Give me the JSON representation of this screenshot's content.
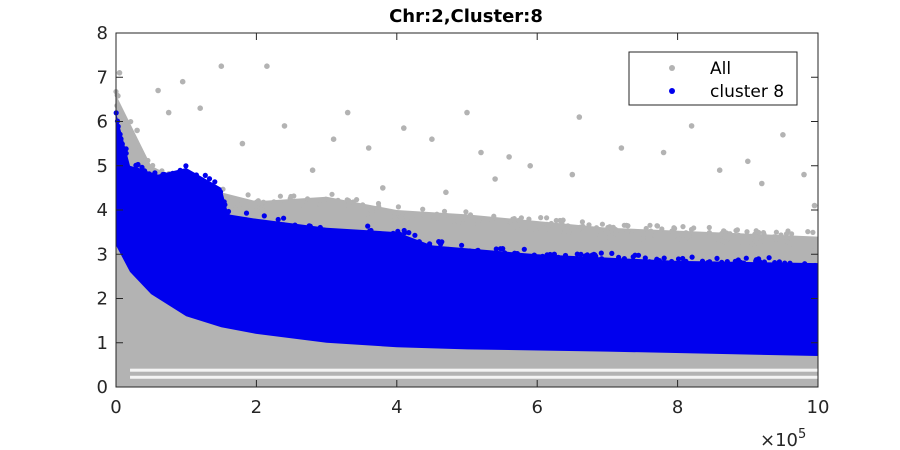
{
  "chart_data": {
    "type": "scatter",
    "title": "Chr:2,Cluster:8",
    "xlabel": "",
    "ylabel": "",
    "xlim": [
      0,
      1000000
    ],
    "ylim": [
      0,
      8
    ],
    "x_ticks": [
      0,
      200000,
      400000,
      600000,
      800000,
      1000000
    ],
    "x_tick_labels": [
      "0",
      "2",
      "4",
      "6",
      "8",
      "10"
    ],
    "x_multiplier_base": "×10",
    "x_multiplier_exp": "5",
    "y_ticks": [
      0,
      1,
      2,
      3,
      4,
      5,
      6,
      7,
      8
    ],
    "y_tick_labels": [
      "0",
      "1",
      "2",
      "3",
      "4",
      "5",
      "6",
      "7",
      "8"
    ],
    "grid": false,
    "legend_position": "top-right",
    "series": [
      {
        "name": "All",
        "color": "#b3b3b3",
        "upper_envelope": [
          [
            0,
            6.6
          ],
          [
            50000,
            5.0
          ],
          [
            100000,
            4.6
          ],
          [
            200000,
            4.2
          ],
          [
            300000,
            4.3
          ],
          [
            400000,
            4.0
          ],
          [
            500000,
            3.9
          ],
          [
            700000,
            3.6
          ],
          [
            1000000,
            3.4
          ]
        ],
        "lower_envelope": [
          [
            0,
            0.0
          ],
          [
            1000000,
            0.0
          ]
        ],
        "outliers": [
          [
            5000,
            7.1
          ],
          [
            60000,
            6.7
          ],
          [
            95000,
            6.9
          ],
          [
            150000,
            7.25
          ],
          [
            215000,
            7.25
          ],
          [
            120000,
            6.3
          ],
          [
            330000,
            6.2
          ],
          [
            240000,
            5.9
          ],
          [
            310000,
            5.6
          ],
          [
            360000,
            5.4
          ],
          [
            410000,
            5.85
          ],
          [
            450000,
            5.6
          ],
          [
            500000,
            6.2
          ],
          [
            520000,
            5.3
          ],
          [
            560000,
            5.2
          ],
          [
            590000,
            5.0
          ],
          [
            660000,
            6.1
          ],
          [
            720000,
            5.4
          ],
          [
            780000,
            5.3
          ],
          [
            820000,
            5.9
          ],
          [
            860000,
            4.9
          ],
          [
            900000,
            5.1
          ],
          [
            920000,
            4.6
          ],
          [
            950000,
            5.7
          ],
          [
            980000,
            4.8
          ],
          [
            995000,
            4.1
          ],
          [
            650000,
            4.8
          ],
          [
            540000,
            4.7
          ],
          [
            470000,
            4.4
          ],
          [
            380000,
            4.5
          ],
          [
            280000,
            4.9
          ],
          [
            180000,
            5.5
          ],
          [
            30000,
            5.8
          ],
          [
            75000,
            6.2
          ]
        ]
      },
      {
        "name": "cluster 8",
        "color": "#0000ee",
        "upper_envelope": [
          [
            0,
            6.2
          ],
          [
            20000,
            5.0
          ],
          [
            60000,
            4.8
          ],
          [
            100000,
            4.95
          ],
          [
            150000,
            4.5
          ],
          [
            160000,
            3.9
          ],
          [
            200000,
            3.8
          ],
          [
            300000,
            3.6
          ],
          [
            400000,
            3.5
          ],
          [
            450000,
            3.2
          ],
          [
            600000,
            3.0
          ],
          [
            800000,
            2.85
          ],
          [
            1000000,
            2.8
          ]
        ],
        "lower_envelope": [
          [
            0,
            3.2
          ],
          [
            20000,
            2.6
          ],
          [
            50000,
            2.1
          ],
          [
            100000,
            1.6
          ],
          [
            150000,
            1.35
          ],
          [
            200000,
            1.2
          ],
          [
            300000,
            1.0
          ],
          [
            400000,
            0.9
          ],
          [
            500000,
            0.85
          ],
          [
            700000,
            0.8
          ],
          [
            1000000,
            0.7
          ]
        ]
      }
    ]
  }
}
